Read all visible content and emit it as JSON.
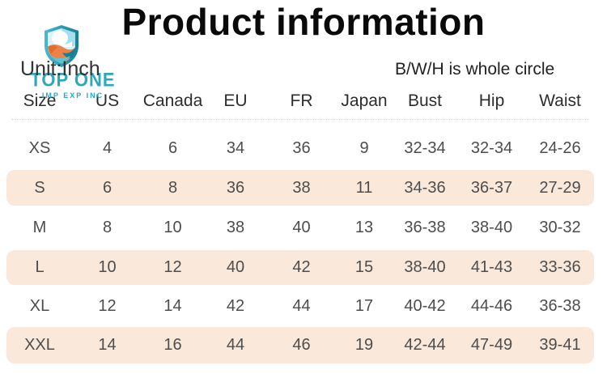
{
  "page": {
    "title": "Product information",
    "unit_label": "Unit:Inch",
    "bwh_label": "B/W/H is whole circle"
  },
  "logo": {
    "icon": "shield-waves-icon",
    "name": "TOP ONE",
    "subtitle": "IMP EXP INC",
    "teal": "#2BA8BE",
    "orange": "#EC8248"
  },
  "colors": {
    "stripe_row": "#FAE9DB",
    "header_text": "#2d2d2d",
    "cell_text": "#4d4d4d",
    "divider_dotted": "#d8d8d8",
    "title_text": "#0a0a0a"
  },
  "chart_data": {
    "type": "table",
    "title": "Product information",
    "notes": [
      "Unit:Inch",
      "B/W/H is whole circle"
    ],
    "columns": [
      "Size",
      "US",
      "Canada",
      "EU",
      "FR",
      "Japan",
      "Bust",
      "Hip",
      "Waist"
    ],
    "rows": [
      [
        "XS",
        "4",
        "6",
        "34",
        "36",
        "9",
        "32-34",
        "32-34",
        "24-26"
      ],
      [
        "S",
        "6",
        "8",
        "36",
        "38",
        "11",
        "34-36",
        "36-37",
        "27-29"
      ],
      [
        "M",
        "8",
        "10",
        "38",
        "40",
        "13",
        "36-38",
        "38-40",
        "30-32"
      ],
      [
        "L",
        "10",
        "12",
        "40",
        "42",
        "15",
        "38-40",
        "41-43",
        "33-36"
      ],
      [
        "XL",
        "12",
        "14",
        "42",
        "44",
        "17",
        "40-42",
        "44-46",
        "36-38"
      ],
      [
        "XXL",
        "14",
        "16",
        "44",
        "46",
        "19",
        "42-44",
        "47-49",
        "39-41"
      ]
    ],
    "layout": {
      "striped_rows": [
        "S",
        "L",
        "XXL"
      ],
      "stripe_color": "#FAE9DB",
      "grid": "none"
    }
  }
}
